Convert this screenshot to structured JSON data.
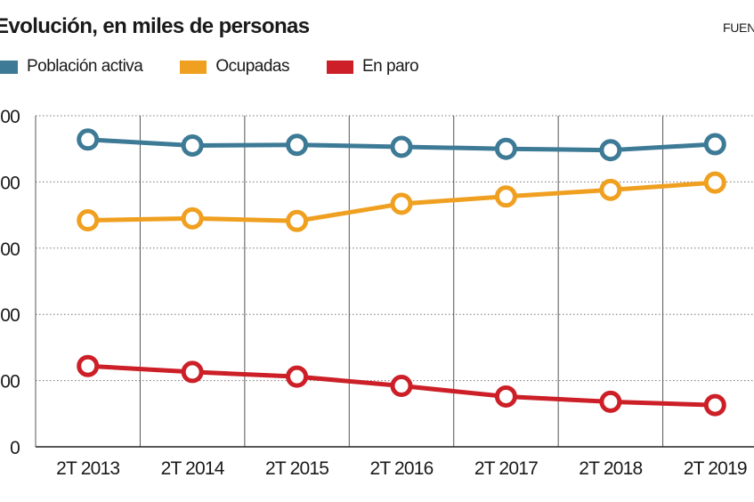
{
  "title": "Evolución, en miles de personas",
  "source": "FUENT",
  "chart_data": {
    "type": "line",
    "x": [
      "2T 2013",
      "2T 2014",
      "2T 2015",
      "2T 2016",
      "2T 2017",
      "2T 2018",
      "2T 2019"
    ],
    "y_tick_labels": [
      "0",
      "00",
      "00",
      "00",
      "00",
      "00"
    ],
    "ylim": [
      0,
      5
    ],
    "grid": true,
    "legend_position": "top-left",
    "series": [
      {
        "name": "Población activa",
        "color": "#3d7a96",
        "values": [
          4.64,
          4.55,
          4.56,
          4.53,
          4.5,
          4.48,
          4.57
        ]
      },
      {
        "name": "Ocupadas",
        "color": "#f0a020",
        "values": [
          3.42,
          3.45,
          3.41,
          3.67,
          3.78,
          3.88,
          3.99
        ]
      },
      {
        "name": "En paro",
        "color": "#cc1f27",
        "values": [
          1.22,
          1.13,
          1.06,
          0.92,
          0.76,
          0.68,
          0.63
        ]
      }
    ]
  }
}
